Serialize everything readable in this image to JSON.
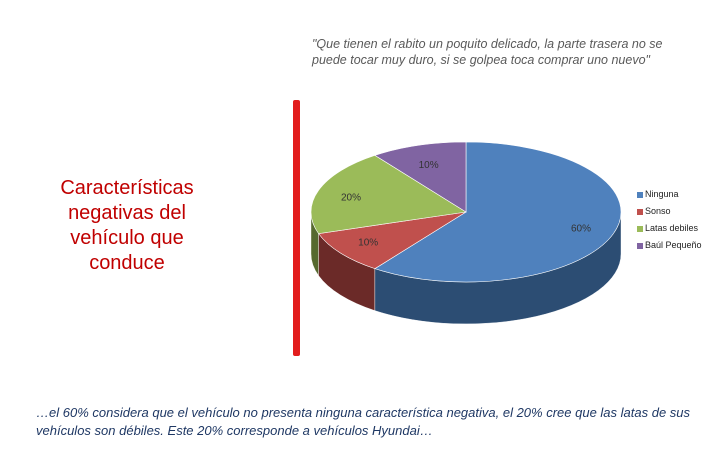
{
  "quote": "\"Que tienen el rabito un poquito delicado, la parte trasera no se puede tocar muy duro, si se golpea toca comprar uno nuevo\"",
  "side_title": "Características negativas del vehículo que conduce",
  "bottom_text": "…el 60% considera que el vehículo no presenta ninguna característica negativa, el 20% cree que las latas de sus vehículos son débiles. Este 20% corresponde a vehículos Hyundai…",
  "chart_data": {
    "type": "pie",
    "style": "3d",
    "labels": [
      "Ninguna",
      "Sonso",
      "Latas debiles",
      "Baúl Pequeño"
    ],
    "values": [
      60,
      10,
      20,
      10
    ],
    "data_labels": [
      "60%",
      "10%",
      "20%",
      "10%"
    ],
    "colors": [
      "#4f81bd",
      "#c0504d",
      "#9bbb59",
      "#8064a2"
    ],
    "side_colors": [
      "#2c4d73",
      "#6b2a28",
      "#56692f",
      "#483965"
    ],
    "legend_position": "right"
  }
}
